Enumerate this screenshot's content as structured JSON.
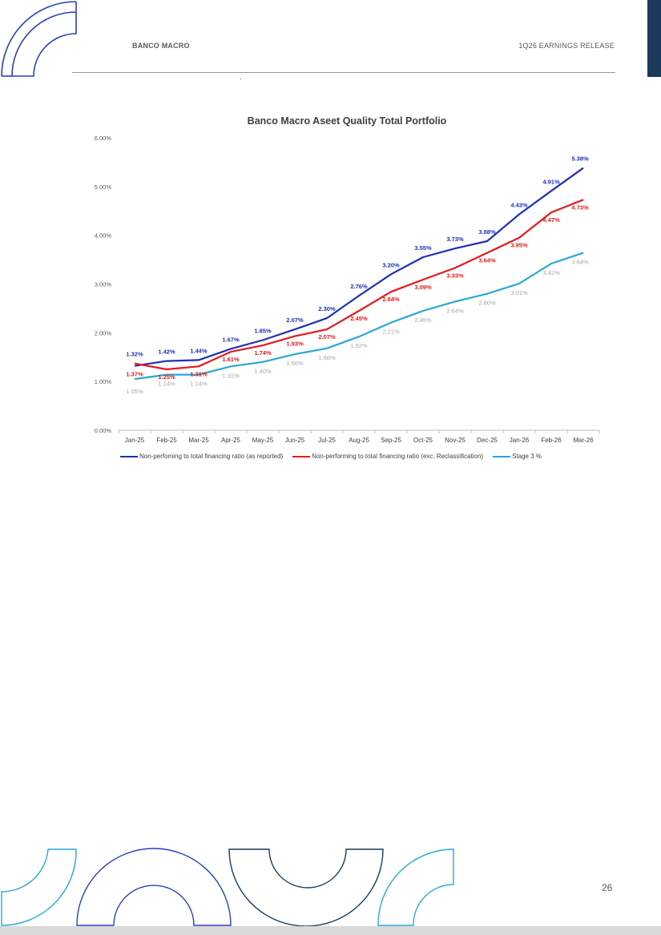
{
  "header": {
    "company": "BANCO MACRO",
    "report": "1Q26 EARNINGS RELEASE"
  },
  "page_number": "26",
  "colors": {
    "brand_navy": "#1b3a5c",
    "brand_blue": "#2b3fbf",
    "brand_cyan": "#29a7d8"
  },
  "chart_data": {
    "type": "line",
    "title": "Banco Macro Aseet Quality Total Portfolio",
    "categories": [
      "Jan-25",
      "Feb-25",
      "Mar-25",
      "Apr-25",
      "May-25",
      "Jun-25",
      "Jul-25",
      "Aug-25",
      "Sep-25",
      "Oct-25",
      "Nov-25",
      "Dec-25",
      "Jan-26",
      "Feb-26",
      "Mar-26"
    ],
    "y_ticks": [
      "0.00%",
      "1.00%",
      "2.00%",
      "3.00%",
      "4.00%",
      "5.00%",
      "6.00%"
    ],
    "ylim": [
      0,
      6
    ],
    "grid": false,
    "legend_position": "bottom",
    "series": [
      {
        "name": "Non-perfoming to total financing ratio (as reported)",
        "color": "#1f2fb5",
        "values": [
          1.32,
          1.42,
          1.44,
          1.67,
          1.85,
          2.07,
          2.3,
          2.76,
          3.2,
          3.55,
          3.73,
          3.88,
          4.43,
          4.91,
          5.38
        ],
        "labels": [
          "1.32%",
          "1.42%",
          "1.44%",
          "1.67%",
          "1.85%",
          "2.07%",
          "2.30%",
          "2.76%",
          "3.20%",
          "3.55%",
          "3.73%",
          "3.88%",
          "4.43%",
          "4.91%",
          "5.38%"
        ]
      },
      {
        "name": "Non-performing to total financing ratio (exc. Reclassification)",
        "color": "#e31a1c",
        "values": [
          1.37,
          1.25,
          1.31,
          1.61,
          1.74,
          1.93,
          2.07,
          2.45,
          2.84,
          3.09,
          3.33,
          3.64,
          3.95,
          4.47,
          4.73
        ],
        "labels": [
          "1.37%",
          "1.25%",
          "1.31%",
          "1.61%",
          "1.74%",
          "1.93%",
          "2.07%",
          "2.45%",
          "2.84%",
          "3.09%",
          "3.33%",
          "3.64%",
          "3.95%",
          "4.47%",
          "4.73%"
        ]
      },
      {
        "name": "Stage 3 %",
        "color": "#29a7d8",
        "label_color": "#a6a6a6",
        "values": [
          1.05,
          1.14,
          1.14,
          1.31,
          1.4,
          1.56,
          1.68,
          1.92,
          2.21,
          2.45,
          2.64,
          2.8,
          3.01,
          3.42,
          3.64
        ],
        "labels": [
          "1.05%",
          "1.14%",
          "1.14%",
          "1.31%",
          "1.40%",
          "1.56%",
          "1.68%",
          "1.92%",
          "2.21%",
          "2.45%",
          "2.64%",
          "2.80%",
          "3.01%",
          "3.42%",
          "3.64%"
        ]
      }
    ]
  }
}
